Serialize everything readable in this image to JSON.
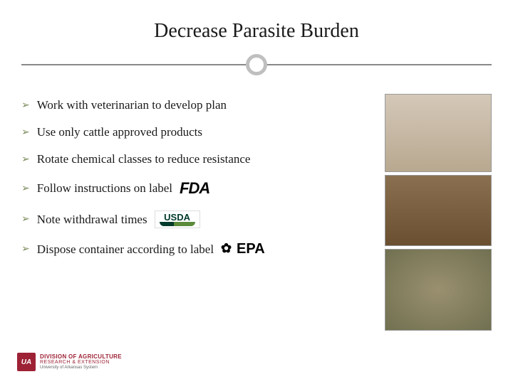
{
  "title": "Decrease Parasite Burden",
  "bullets": [
    {
      "text": "Work with veterinarian to develop plan",
      "logo": null
    },
    {
      "text": "Use only cattle approved products",
      "logo": null
    },
    {
      "text": "Rotate chemical classes to reduce resistance",
      "logo": null
    },
    {
      "text": "Follow instructions on label",
      "logo": "FDA"
    },
    {
      "text": "Note withdrawal times",
      "logo": "USDA"
    },
    {
      "text": "Dispose container according to label",
      "logo": "EPA"
    }
  ],
  "bullet_marker": "➢",
  "style": {
    "title_fontsize": 28,
    "title_color": "#1a1a1a",
    "bullet_fontsize": 17,
    "bullet_color": "#1a1a1a",
    "arrow_color": "#7a8a5a",
    "divider_line_color": "#888888",
    "divider_circle_border": "#bfbfbf",
    "background": "#ffffff"
  },
  "logos": {
    "fda": {
      "text": "FDA",
      "color": "#000000"
    },
    "usda": {
      "text": "USDA",
      "color": "#003a2b",
      "accent": "#5a8a3a"
    },
    "epa": {
      "text": "EPA",
      "color": "#000000"
    }
  },
  "side_images": [
    {
      "name": "cow-face-photo",
      "desc": "cattle face close-up"
    },
    {
      "name": "cow-body-photo",
      "desc": "cattle hindquarters"
    },
    {
      "name": "parasite-egg-photo",
      "desc": "parasite egg micrograph"
    }
  ],
  "footer": {
    "badge": "UA",
    "line1": "DIVISION OF AGRICULTURE",
    "line2": "RESEARCH & EXTENSION",
    "line3": "University of Arkansas System",
    "brand_color": "#9d2235"
  }
}
